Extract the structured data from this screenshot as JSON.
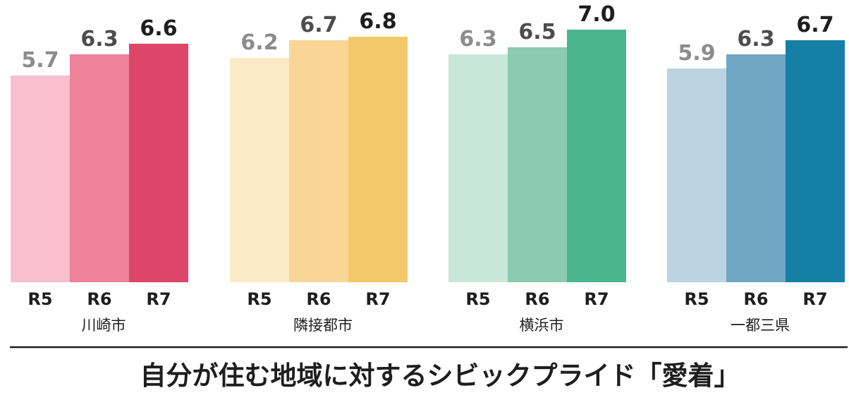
{
  "chart_data": {
    "type": "bar",
    "title": "自分が住む地域に対するシビックプライド「愛着」",
    "ylim": [
      0,
      7.0
    ],
    "grid": false,
    "groups": [
      {
        "name": "川崎市",
        "categories": [
          "R5",
          "R6",
          "R7"
        ],
        "values": [
          5.7,
          6.3,
          6.6
        ],
        "colors": [
          "#f7bfcf",
          "#ed8299",
          "#de4669"
        ]
      },
      {
        "name": "隣接都市",
        "categories": [
          "R5",
          "R6",
          "R7"
        ],
        "values": [
          6.2,
          6.7,
          6.8
        ],
        "colors": [
          "#fdebc8",
          "#f9d696",
          "#f4c96b"
        ]
      },
      {
        "name": "横浜市",
        "categories": [
          "R5",
          "R6",
          "R7"
        ],
        "values": [
          6.3,
          6.5,
          7.0
        ],
        "colors": [
          "#c9e7d9",
          "#8ccbb0",
          "#4ab58f"
        ]
      },
      {
        "name": "一都三県",
        "categories": [
          "R5",
          "R6",
          "R7"
        ],
        "values": [
          5.9,
          6.3,
          6.7
        ],
        "colors": [
          "#bcd4e1",
          "#6fa7c2",
          "#1580a6"
        ]
      }
    ],
    "label_colors": [
      "#8c8c8c",
      "#4d4d4d",
      "#1e1e1e"
    ]
  }
}
